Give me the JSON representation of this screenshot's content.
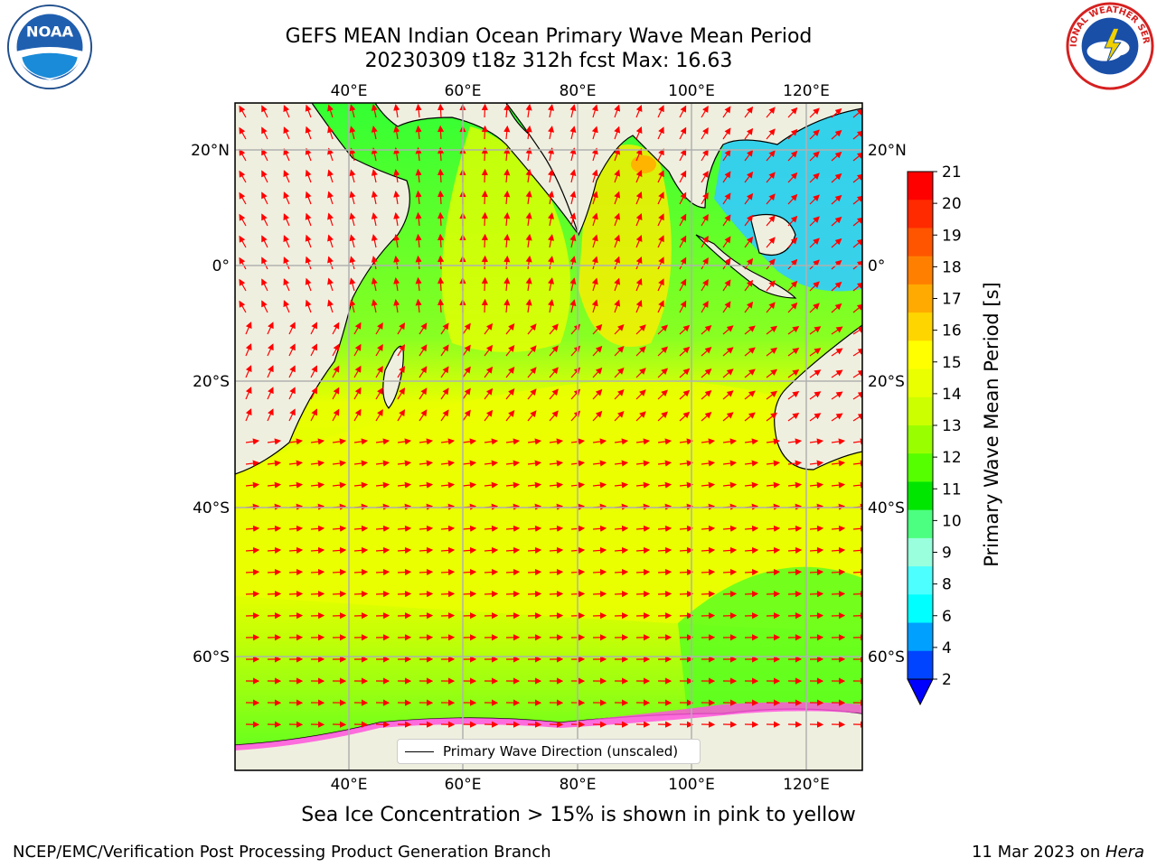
{
  "title": {
    "line1": "GEFS MEAN Indian Ocean Primary Wave Mean Period",
    "line2": "20230309 t18z 312h fcst   Max: 16.63"
  },
  "logos": {
    "left": {
      "text": "NOAA",
      "icon": "noaa-logo-icon"
    },
    "right": {
      "text": "NATIONAL WEATHER SERVICE",
      "icon": "nws-logo-icon"
    }
  },
  "map": {
    "lon_ticks_top": [
      "40°E",
      "60°E",
      "80°E",
      "100°E",
      "120°E"
    ],
    "lon_ticks_bottom": [
      "40°E",
      "60°E",
      "80°E",
      "100°E",
      "120°E"
    ],
    "lat_ticks_left": [
      "20°N",
      "0°",
      "20°S",
      "40°S",
      "60°S"
    ],
    "lat_ticks_right": [
      "20°N",
      "0°",
      "20°S",
      "40°S",
      "60°S"
    ],
    "legend": "Primary Wave Direction (unscaled)",
    "arrow_color": "#ff0000",
    "land_color": "#efefdf"
  },
  "colorbar": {
    "label": "Primary Wave Mean Period [s]",
    "ticks": [
      "21",
      "20",
      "19",
      "18",
      "17",
      "16",
      "15",
      "14",
      "13",
      "12",
      "11",
      "10",
      "9",
      "8",
      "6",
      "4",
      "2"
    ],
    "colors": [
      "#ff0000",
      "#ff2a00",
      "#ff5500",
      "#ff8000",
      "#ffaa00",
      "#ffd500",
      "#ffff00",
      "#eaff00",
      "#ccff00",
      "#99ff00",
      "#55ff00",
      "#00e600",
      "#4dff80",
      "#99ffdd",
      "#4dffff",
      "#00ffff",
      "#00a0ff",
      "#0044ff"
    ],
    "under_color": "#0000ff"
  },
  "ice_note": "Sea Ice Concentration > 15% is shown in pink to yellow",
  "footer": {
    "left": "NCEP/EMC/Verification Post Processing Product Generation Branch",
    "right_prefix": "11 Mar 2023 on ",
    "right_machine": "Hera"
  }
}
